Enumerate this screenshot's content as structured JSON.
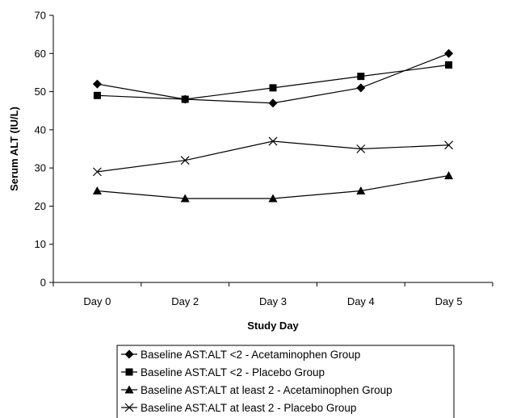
{
  "chart_data": {
    "type": "line",
    "title": "",
    "xlabel": "Study Day",
    "ylabel": "Serum ALT (IU/L)",
    "ylim": [
      0,
      70
    ],
    "yticks": [
      0,
      10,
      20,
      30,
      40,
      50,
      60,
      70
    ],
    "grid": false,
    "legend_position": "bottom",
    "categories": [
      "Day 0",
      "Day 2",
      "Day 3",
      "Day 4",
      "Day 5"
    ],
    "series": [
      {
        "name": "Baseline AST:ALT <2 - Acetaminophen Group",
        "marker": "diamond",
        "color": "#000000",
        "values": [
          52,
          48,
          47,
          51,
          60
        ]
      },
      {
        "name": "Baseline AST:ALT <2 - Placebo Group",
        "marker": "square",
        "color": "#000000",
        "values": [
          49,
          48,
          51,
          54,
          57
        ]
      },
      {
        "name": "Baseline AST:ALT at least 2 - Acetaminophen Group",
        "marker": "triangle",
        "color": "#000000",
        "values": [
          24,
          22,
          22,
          24,
          28
        ]
      },
      {
        "name": "Baseline AST:ALT at least 2 - Placebo Group",
        "marker": "x",
        "color": "#000000",
        "values": [
          29,
          32,
          37,
          35,
          36
        ]
      }
    ]
  }
}
